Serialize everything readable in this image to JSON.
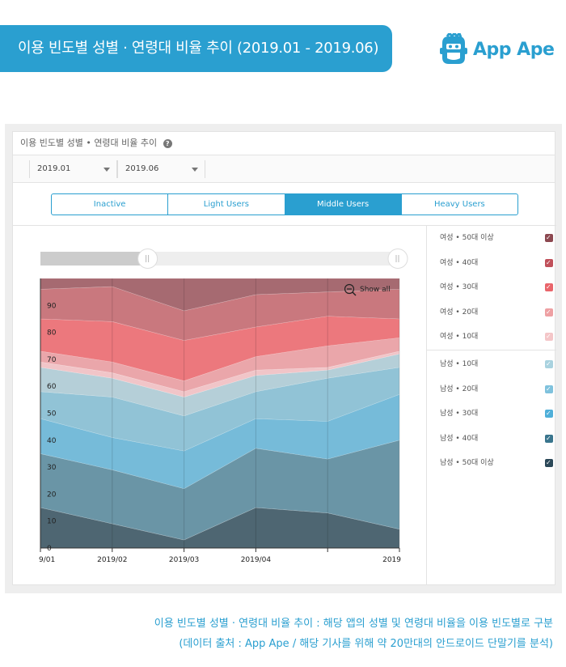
{
  "banner": {
    "title": "이용 빈도별 성별 · 연령대 비율 추이 (2019.01 - 2019.06)"
  },
  "logo": {
    "text": "App Ape"
  },
  "panel": {
    "header_title": "이용 빈도별 성별 • 연령대 비율 추이",
    "help_icon": "question-circle-icon",
    "date_from": "2019.01",
    "date_to": "2019.06",
    "tabs": [
      {
        "label": "Inactive",
        "active": false
      },
      {
        "label": "Light Users",
        "active": false
      },
      {
        "label": "Middle Users",
        "active": true
      },
      {
        "label": "Heavy Users",
        "active": false
      }
    ],
    "show_all": "Show all",
    "range_slider": {
      "start_fraction": 0.3,
      "end_fraction": 1.0
    }
  },
  "legend": [
    {
      "label": "여성 • 50대 이상",
      "color": "#8c4850"
    },
    {
      "label": "여성 • 40대",
      "color": "#c0505a"
    },
    {
      "label": "여성 • 30대",
      "color": "#e9656b"
    },
    {
      "label": "여성 • 20대",
      "color": "#eea0a3"
    },
    {
      "label": "여성 • 10대",
      "color": "#f4c6c8"
    },
    {
      "label": "남성 • 10대",
      "color": "#a9d2df"
    },
    {
      "label": "남성 • 20대",
      "color": "#7fc2dd"
    },
    {
      "label": "남성 • 30대",
      "color": "#4fafd9"
    },
    {
      "label": "남성 • 40대",
      "color": "#39758d"
    },
    {
      "label": "남성 • 50대 이상",
      "color": "#2b4858"
    }
  ],
  "chart_data": {
    "type": "area",
    "stacked": true,
    "x": [
      "2019/01",
      "2019/02",
      "2019/03",
      "2019/04",
      "2019/05",
      "2019/06"
    ],
    "x_tick_labels": [
      "9/01",
      "2019/02",
      "2019/03",
      "2019/04",
      "",
      "2019"
    ],
    "y_ticks": [
      0,
      10,
      20,
      30,
      40,
      50,
      60,
      70,
      80,
      90
    ],
    "ylim": [
      0,
      100
    ],
    "grid": false,
    "legend_position": "right",
    "series": [
      {
        "name": "남성 • 50대 이상",
        "color": "#4e6672",
        "values": [
          15,
          9,
          3,
          15,
          13,
          7
        ]
      },
      {
        "name": "남성 • 40대",
        "color": "#6a95a6",
        "values": [
          20,
          20,
          19,
          22,
          20,
          33
        ]
      },
      {
        "name": "남성 • 30대",
        "color": "#76bbd9",
        "values": [
          13,
          12,
          14,
          11,
          14,
          17
        ]
      },
      {
        "name": "남성 • 20대",
        "color": "#91c3d6",
        "values": [
          10,
          15,
          13,
          10,
          16,
          10
        ]
      },
      {
        "name": "남성 • 10대",
        "color": "#b5cfd8",
        "values": [
          9,
          7,
          7,
          6,
          3,
          5
        ]
      },
      {
        "name": "여성 • 10대",
        "color": "#f1c5c8",
        "values": [
          2,
          2,
          2,
          2,
          1,
          1
        ]
      },
      {
        "name": "여성 • 20대",
        "color": "#eaa6aa",
        "values": [
          4,
          4,
          4,
          5,
          8,
          5
        ]
      },
      {
        "name": "여성 • 30대",
        "color": "#ec787d",
        "values": [
          12,
          15,
          15,
          11,
          11,
          7
        ]
      },
      {
        "name": "여성 • 40대",
        "color": "#c9787e",
        "values": [
          11,
          13,
          11,
          12,
          9,
          11
        ]
      },
      {
        "name": "여성 • 50대 이상",
        "color": "#a66a71",
        "values": [
          4,
          3,
          12,
          6,
          5,
          4
        ]
      }
    ]
  },
  "caption": {
    "line1": "이용 빈도별 성별 · 연령대 비율 추이 : 해당 앱의 성별 및 연령대 비율을 이용 빈도별로 구분",
    "line2": "(데이터 출처 : App Ape / 해당 기사를 위해 약 20만대의 안드로이드 단말기를 분석)"
  }
}
